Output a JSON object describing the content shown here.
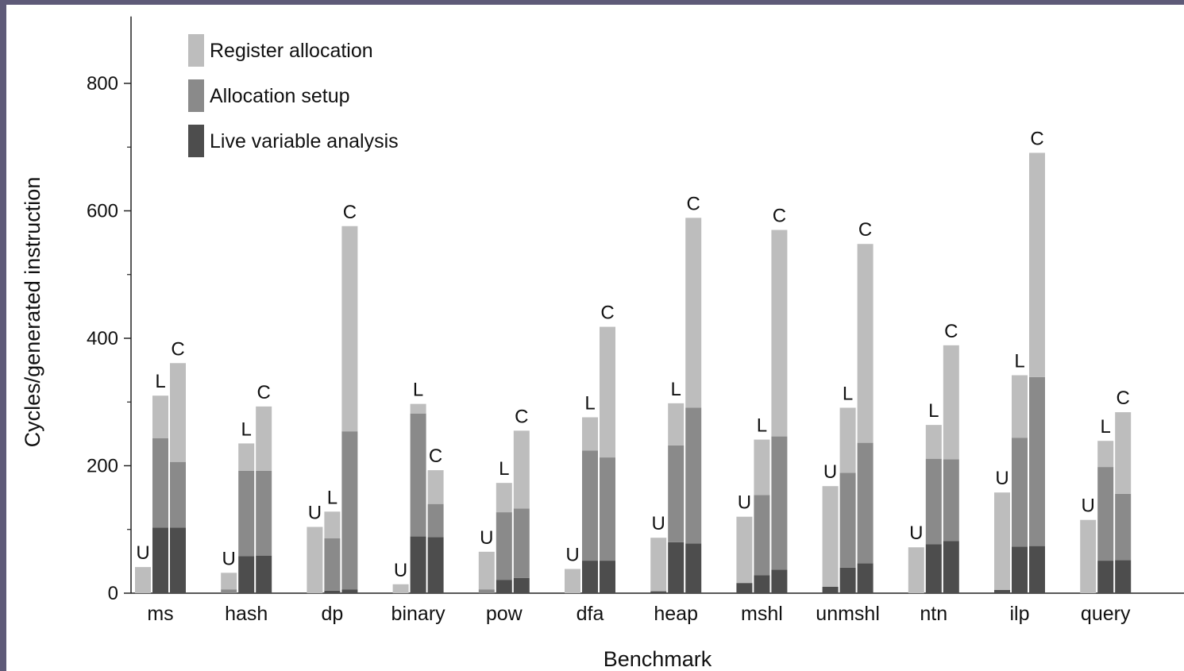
{
  "chart_data": {
    "type": "stacked-bar",
    "xlabel": "Benchmark",
    "ylabel": "Cycles/generated instruction",
    "ylim": [
      0,
      900
    ],
    "yticks": [
      0,
      200,
      400,
      600,
      800
    ],
    "grid": false,
    "legend_position": "top-left",
    "bar_labels": [
      "U",
      "L",
      "C"
    ],
    "categories": [
      "ms",
      "hash",
      "dp",
      "binary",
      "pow",
      "dfa",
      "heap",
      "mshl",
      "unmshl",
      "ntn",
      "ilp",
      "query"
    ],
    "series": [
      {
        "name": "Live variable analysis",
        "color": "#4d4d4d",
        "values": [
          [
            0,
            103,
            103
          ],
          [
            0,
            58,
            59
          ],
          [
            0,
            4,
            6
          ],
          [
            0,
            89,
            88
          ],
          [
            0,
            21,
            24
          ],
          [
            0,
            51,
            51
          ],
          [
            3,
            80,
            78
          ],
          [
            16,
            28,
            37
          ],
          [
            10,
            40,
            47
          ],
          [
            0,
            77,
            82
          ],
          [
            5,
            73,
            74
          ],
          [
            0,
            51,
            52
          ]
        ]
      },
      {
        "name": "Allocation setup",
        "color": "#8a8a8a",
        "values": [
          [
            0,
            140,
            103
          ],
          [
            6,
            134,
            133
          ],
          [
            0,
            82,
            248
          ],
          [
            0,
            193,
            52
          ],
          [
            6,
            106,
            109
          ],
          [
            0,
            173,
            162
          ],
          [
            0,
            152,
            213
          ],
          [
            0,
            126,
            209
          ],
          [
            0,
            149,
            189
          ],
          [
            0,
            134,
            128
          ],
          [
            0,
            171,
            265
          ],
          [
            0,
            147,
            104
          ]
        ]
      },
      {
        "name": "Register allocation",
        "color": "#bdbdbd",
        "values": [
          [
            41,
            67,
            155
          ],
          [
            26,
            43,
            101
          ],
          [
            104,
            42,
            322
          ],
          [
            14,
            15,
            53
          ],
          [
            59,
            46,
            122
          ],
          [
            38,
            52,
            205
          ],
          [
            84,
            66,
            298
          ],
          [
            104,
            87,
            324
          ],
          [
            158,
            102,
            312
          ],
          [
            72,
            53,
            179
          ],
          [
            153,
            98,
            352
          ],
          [
            115,
            41,
            128
          ]
        ]
      }
    ]
  }
}
